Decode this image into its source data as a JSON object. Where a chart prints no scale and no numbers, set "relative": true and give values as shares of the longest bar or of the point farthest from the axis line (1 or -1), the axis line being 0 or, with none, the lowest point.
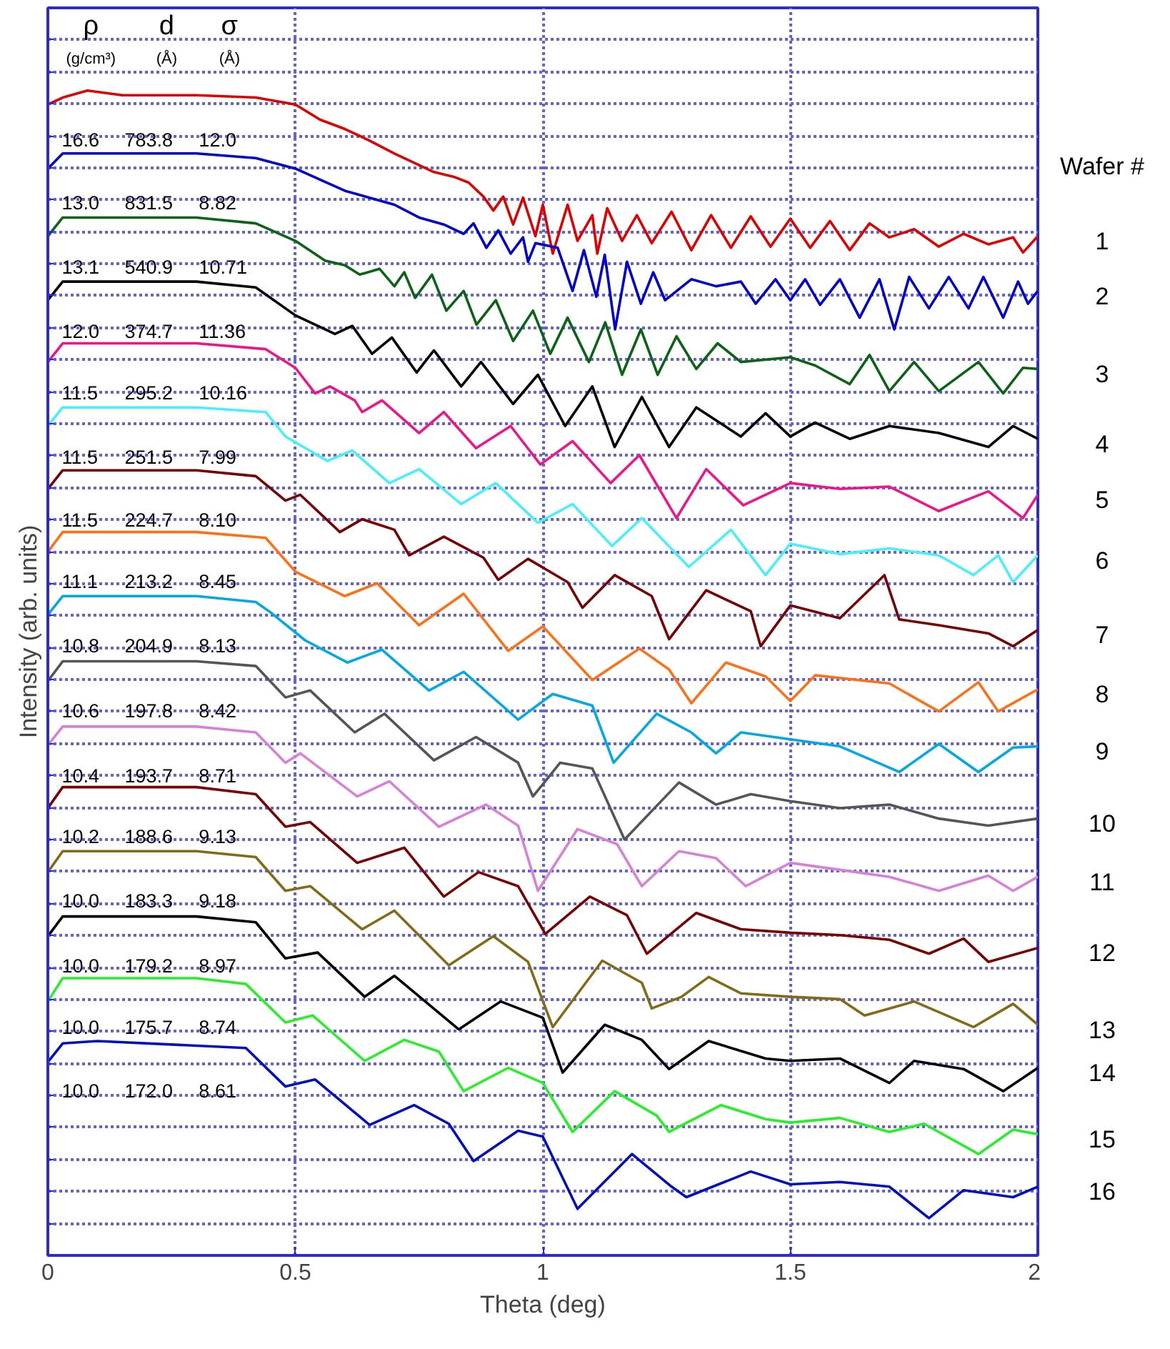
{
  "chart_data": {
    "type": "line",
    "relative": true,
    "xlabel": "Theta (deg)",
    "ylabel": "Intensity (arb. units)",
    "legend_title": "Wafer #",
    "grid": true,
    "tick_labels": "x",
    "xlim": [
      0,
      2
    ],
    "xticks": [
      0,
      0.5,
      1,
      1.5,
      2
    ],
    "annotations": [
      "ρ",
      "d",
      "σ",
      "(g/cm³)",
      "(Å)",
      "(Å)",
      "16.6",
      "783.8",
      "12.0",
      "13.0",
      "831.5",
      "8.82",
      "13.1",
      "540.9",
      "10.71",
      "12.0",
      "374.7",
      "11.36",
      "11.5",
      "295.2",
      "10.16",
      "11.5",
      "251.5",
      "7.99",
      "11.5",
      "224.7",
      "8.10",
      "11.1",
      "213.2",
      "8.45",
      "10.8",
      "204.9",
      "8.13",
      "10.6",
      "197.8",
      "8.42",
      "10.4",
      "193.7",
      "8.71",
      "10.2",
      "188.6",
      "9.13",
      "10.0",
      "183.3",
      "9.18",
      "10.0",
      "179.2",
      "8.97",
      "10.0",
      "175.7",
      "8.74",
      "10.0",
      "172.0",
      "8.61"
    ],
    "series": [
      {
        "name": "1",
        "color": "#e00000",
        "x": [
          0,
          0.03,
          0.08,
          0.15,
          0.3,
          0.42,
          0.5,
          0.55,
          0.6,
          0.65,
          0.7,
          0.75,
          0.78,
          0.82,
          0.85,
          0.88,
          0.9,
          0.92,
          0.94,
          0.96,
          0.985,
          1.0,
          1.02,
          1.05,
          1.07,
          1.1,
          1.11,
          1.13,
          1.16,
          1.19,
          1.22,
          1.26,
          1.3,
          1.34,
          1.38,
          1.42,
          1.46,
          1.5,
          1.54,
          1.58,
          1.62,
          1.66,
          1.7,
          1.75,
          1.8,
          1.85,
          1.9,
          1.95,
          1.97,
          2.0
        ],
        "values": [
          0.988,
          0.994,
          1.0,
          0.996,
          0.996,
          0.994,
          0.988,
          0.975,
          0.967,
          0.957,
          0.946,
          0.936,
          0.93,
          0.926,
          0.921,
          0.909,
          0.897,
          0.909,
          0.885,
          0.908,
          0.875,
          0.902,
          0.86,
          0.902,
          0.871,
          0.893,
          0.86,
          0.899,
          0.871,
          0.893,
          0.869,
          0.896,
          0.863,
          0.893,
          0.865,
          0.892,
          0.866,
          0.89,
          0.865,
          0.888,
          0.863,
          0.886,
          0.874,
          0.881,
          0.866,
          0.877,
          0.868,
          0.874,
          0.861,
          0.875
        ]
      },
      {
        "name": "2",
        "color": "#0000d0",
        "x": [
          0,
          0.03,
          0.1,
          0.3,
          0.42,
          0.5,
          0.6,
          0.7,
          0.75,
          0.8,
          0.84,
          0.86,
          0.886,
          0.91,
          0.935,
          0.96,
          0.97,
          0.985,
          1.03,
          1.06,
          1.083,
          1.108,
          1.125,
          1.146,
          1.17,
          1.198,
          1.223,
          1.247,
          1.3,
          1.35,
          1.4,
          1.43,
          1.47,
          1.5,
          1.53,
          1.56,
          1.6,
          1.64,
          1.68,
          1.71,
          1.74,
          1.78,
          1.82,
          1.86,
          1.89,
          1.93,
          1.96,
          1.98,
          2.0
        ],
        "values": [
          0.933,
          0.946,
          0.946,
          0.946,
          0.942,
          0.933,
          0.914,
          0.902,
          0.891,
          0.885,
          0.877,
          0.886,
          0.865,
          0.88,
          0.86,
          0.874,
          0.853,
          0.869,
          0.865,
          0.828,
          0.863,
          0.823,
          0.859,
          0.795,
          0.853,
          0.817,
          0.844,
          0.82,
          0.838,
          0.832,
          0.836,
          0.817,
          0.838,
          0.82,
          0.838,
          0.816,
          0.838,
          0.805,
          0.838,
          0.795,
          0.84,
          0.813,
          0.84,
          0.813,
          0.84,
          0.805,
          0.836,
          0.817,
          0.828
        ]
      },
      {
        "name": "3",
        "color": "#0a6414",
        "x": [
          0,
          0.03,
          0.1,
          0.3,
          0.42,
          0.5,
          0.56,
          0.6,
          0.63,
          0.67,
          0.7,
          0.72,
          0.742,
          0.776,
          0.805,
          0.84,
          0.866,
          0.905,
          0.94,
          0.98,
          1.015,
          1.05,
          1.093,
          1.126,
          1.16,
          1.198,
          1.232,
          1.27,
          1.31,
          1.353,
          1.4,
          1.5,
          1.55,
          1.62,
          1.66,
          1.7,
          1.75,
          1.8,
          1.88,
          1.93,
          1.97,
          2.0
        ],
        "values": [
          0.875,
          0.891,
          0.891,
          0.891,
          0.886,
          0.871,
          0.854,
          0.85,
          0.842,
          0.847,
          0.832,
          0.844,
          0.822,
          0.842,
          0.811,
          0.828,
          0.799,
          0.82,
          0.785,
          0.811,
          0.774,
          0.805,
          0.767,
          0.801,
          0.756,
          0.795,
          0.756,
          0.789,
          0.761,
          0.783,
          0.767,
          0.771,
          0.764,
          0.748,
          0.773,
          0.742,
          0.767,
          0.742,
          0.767,
          0.74,
          0.762,
          0.761
        ]
      },
      {
        "name": "4",
        "color": "#000000",
        "x": [
          0,
          0.03,
          0.1,
          0.3,
          0.42,
          0.5,
          0.58,
          0.615,
          0.655,
          0.695,
          0.745,
          0.78,
          0.835,
          0.875,
          0.94,
          0.99,
          1.045,
          1.1,
          1.145,
          1.2,
          1.255,
          1.31,
          1.4,
          1.45,
          1.5,
          1.55,
          1.62,
          1.7,
          1.8,
          1.9,
          1.95,
          2.0
        ],
        "values": [
          0.82,
          0.836,
          0.836,
          0.836,
          0.831,
          0.807,
          0.791,
          0.798,
          0.774,
          0.788,
          0.758,
          0.777,
          0.746,
          0.767,
          0.731,
          0.756,
          0.712,
          0.746,
          0.694,
          0.737,
          0.694,
          0.728,
          0.703,
          0.723,
          0.703,
          0.715,
          0.701,
          0.712,
          0.706,
          0.694,
          0.712,
          0.701
        ]
      },
      {
        "name": "5",
        "color": "#f0148c",
        "x": [
          0,
          0.03,
          0.1,
          0.3,
          0.44,
          0.5,
          0.54,
          0.57,
          0.62,
          0.635,
          0.675,
          0.75,
          0.8,
          0.865,
          0.935,
          0.995,
          1.06,
          1.137,
          1.195,
          1.27,
          1.33,
          1.405,
          1.5,
          1.6,
          1.7,
          1.8,
          1.9,
          1.97,
          2.0
        ],
        "values": [
          0.767,
          0.783,
          0.783,
          0.783,
          0.778,
          0.762,
          0.74,
          0.746,
          0.734,
          0.724,
          0.734,
          0.706,
          0.724,
          0.693,
          0.712,
          0.679,
          0.699,
          0.663,
          0.687,
          0.633,
          0.675,
          0.644,
          0.663,
          0.658,
          0.66,
          0.639,
          0.656,
          0.633,
          0.653
        ]
      },
      {
        "name": "6",
        "color": "#48f0ff",
        "x": [
          0,
          0.03,
          0.1,
          0.3,
          0.44,
          0.48,
          0.565,
          0.615,
          0.69,
          0.75,
          0.835,
          0.905,
          0.99,
          1.06,
          1.14,
          1.2,
          1.295,
          1.38,
          1.45,
          1.5,
          1.6,
          1.7,
          1.8,
          1.87,
          1.92,
          1.95,
          2.0
        ],
        "values": [
          0.712,
          0.728,
          0.728,
          0.728,
          0.724,
          0.703,
          0.682,
          0.691,
          0.663,
          0.675,
          0.645,
          0.663,
          0.629,
          0.645,
          0.609,
          0.633,
          0.591,
          0.623,
          0.584,
          0.611,
          0.602,
          0.607,
          0.601,
          0.584,
          0.601,
          0.578,
          0.601
        ]
      },
      {
        "name": "7",
        "color": "#780000",
        "x": [
          0,
          0.03,
          0.1,
          0.3,
          0.42,
          0.48,
          0.51,
          0.59,
          0.635,
          0.7,
          0.73,
          0.8,
          0.88,
          0.91,
          0.97,
          1.05,
          1.08,
          1.145,
          1.22,
          1.255,
          1.33,
          1.42,
          1.44,
          1.5,
          1.6,
          1.69,
          1.72,
          1.8,
          1.9,
          1.95,
          2.0
        ],
        "values": [
          0.658,
          0.674,
          0.674,
          0.674,
          0.669,
          0.648,
          0.653,
          0.621,
          0.632,
          0.623,
          0.601,
          0.617,
          0.599,
          0.58,
          0.598,
          0.578,
          0.556,
          0.584,
          0.566,
          0.529,
          0.571,
          0.553,
          0.523,
          0.558,
          0.547,
          0.584,
          0.546,
          0.541,
          0.534,
          0.523,
          0.537
        ]
      },
      {
        "name": "8",
        "color": "#ff7014",
        "x": [
          0,
          0.03,
          0.1,
          0.3,
          0.44,
          0.5,
          0.6,
          0.665,
          0.75,
          0.84,
          0.93,
          1.0,
          1.1,
          1.195,
          1.255,
          1.3,
          1.37,
          1.45,
          1.5,
          1.55,
          1.7,
          1.8,
          1.88,
          1.92,
          2.0
        ],
        "values": [
          0.604,
          0.621,
          0.621,
          0.621,
          0.616,
          0.587,
          0.566,
          0.577,
          0.541,
          0.568,
          0.519,
          0.54,
          0.494,
          0.521,
          0.503,
          0.474,
          0.509,
          0.497,
          0.476,
          0.498,
          0.491,
          0.467,
          0.492,
          0.467,
          0.486
        ]
      },
      {
        "name": "9",
        "color": "#00a8e8",
        "x": [
          0,
          0.03,
          0.1,
          0.3,
          0.42,
          0.45,
          0.52,
          0.605,
          0.675,
          0.77,
          0.84,
          0.95,
          1.02,
          1.1,
          1.143,
          1.23,
          1.3,
          1.35,
          1.4,
          1.5,
          1.6,
          1.72,
          1.8,
          1.88,
          1.95,
          2.0
        ],
        "values": [
          0.55,
          0.566,
          0.566,
          0.566,
          0.561,
          0.552,
          0.528,
          0.509,
          0.52,
          0.485,
          0.501,
          0.46,
          0.482,
          0.472,
          0.423,
          0.465,
          0.449,
          0.431,
          0.449,
          0.443,
          0.437,
          0.415,
          0.439,
          0.415,
          0.436,
          0.437
        ]
      },
      {
        "name": "10",
        "color": "#555555",
        "x": [
          0,
          0.03,
          0.1,
          0.3,
          0.42,
          0.48,
          0.53,
          0.62,
          0.68,
          0.78,
          0.865,
          0.95,
          0.98,
          1.035,
          1.1,
          1.165,
          1.275,
          1.35,
          1.42,
          1.5,
          1.6,
          1.7,
          1.8,
          1.9,
          2.0
        ],
        "values": [
          0.493,
          0.51,
          0.51,
          0.51,
          0.506,
          0.479,
          0.485,
          0.449,
          0.465,
          0.425,
          0.445,
          0.423,
          0.394,
          0.423,
          0.418,
          0.357,
          0.406,
          0.387,
          0.396,
          0.39,
          0.384,
          0.387,
          0.375,
          0.369,
          0.375
        ]
      },
      {
        "name": "11",
        "color": "#d880d8",
        "x": [
          0,
          0.03,
          0.1,
          0.3,
          0.42,
          0.48,
          0.51,
          0.625,
          0.69,
          0.79,
          0.885,
          0.95,
          0.99,
          1.07,
          1.15,
          1.2,
          1.275,
          1.35,
          1.41,
          1.5,
          1.6,
          1.7,
          1.8,
          1.9,
          1.95,
          2.0
        ],
        "values": [
          0.438,
          0.454,
          0.454,
          0.454,
          0.449,
          0.423,
          0.431,
          0.394,
          0.407,
          0.368,
          0.387,
          0.369,
          0.313,
          0.366,
          0.353,
          0.317,
          0.347,
          0.341,
          0.317,
          0.337,
          0.331,
          0.325,
          0.313,
          0.326,
          0.313,
          0.325
        ]
      },
      {
        "name": "12",
        "color": "#7a0000",
        "x": [
          0,
          0.03,
          0.1,
          0.3,
          0.42,
          0.48,
          0.53,
          0.625,
          0.72,
          0.8,
          0.87,
          0.95,
          1.005,
          1.095,
          1.17,
          1.21,
          1.31,
          1.4,
          1.5,
          1.6,
          1.7,
          1.78,
          1.85,
          1.9,
          2.0
        ],
        "values": [
          0.384,
          0.402,
          0.402,
          0.402,
          0.396,
          0.368,
          0.372,
          0.337,
          0.35,
          0.308,
          0.329,
          0.317,
          0.276,
          0.308,
          0.292,
          0.259,
          0.294,
          0.28,
          0.277,
          0.275,
          0.271,
          0.259,
          0.272,
          0.252,
          0.264
        ]
      },
      {
        "name": "13",
        "color": "#846a14",
        "x": [
          0,
          0.03,
          0.1,
          0.3,
          0.42,
          0.48,
          0.53,
          0.635,
          0.7,
          0.81,
          0.9,
          0.97,
          1.02,
          1.12,
          1.2,
          1.22,
          1.28,
          1.335,
          1.4,
          1.5,
          1.6,
          1.65,
          1.75,
          1.87,
          1.95,
          2.0
        ],
        "values": [
          0.329,
          0.347,
          0.347,
          0.347,
          0.342,
          0.313,
          0.317,
          0.28,
          0.296,
          0.249,
          0.274,
          0.252,
          0.196,
          0.253,
          0.234,
          0.212,
          0.222,
          0.239,
          0.225,
          0.222,
          0.22,
          0.206,
          0.218,
          0.196,
          0.216,
          0.198
        ]
      },
      {
        "name": "14",
        "color": "#000000",
        "x": [
          0,
          0.03,
          0.1,
          0.3,
          0.42,
          0.48,
          0.545,
          0.64,
          0.7,
          0.83,
          0.915,
          1.0,
          1.04,
          1.125,
          1.2,
          1.255,
          1.335,
          1.45,
          1.5,
          1.6,
          1.7,
          1.75,
          1.85,
          1.93,
          2.0
        ],
        "values": [
          0.274,
          0.291,
          0.291,
          0.291,
          0.286,
          0.255,
          0.26,
          0.222,
          0.24,
          0.194,
          0.218,
          0.204,
          0.157,
          0.198,
          0.185,
          0.16,
          0.184,
          0.169,
          0.167,
          0.169,
          0.148,
          0.167,
          0.16,
          0.141,
          0.161
        ]
      },
      {
        "name": "15",
        "color": "#28f028",
        "x": [
          0,
          0.03,
          0.1,
          0.3,
          0.4,
          0.48,
          0.535,
          0.64,
          0.72,
          0.79,
          0.84,
          0.93,
          1.0,
          1.06,
          1.145,
          1.23,
          1.255,
          1.36,
          1.45,
          1.5,
          1.6,
          1.7,
          1.77,
          1.88,
          1.95,
          2.0
        ],
        "values": [
          0.218,
          0.238,
          0.238,
          0.238,
          0.233,
          0.2,
          0.206,
          0.167,
          0.185,
          0.175,
          0.141,
          0.161,
          0.148,
          0.106,
          0.141,
          0.12,
          0.106,
          0.129,
          0.117,
          0.114,
          0.118,
          0.106,
          0.113,
          0.087,
          0.108,
          0.104
        ]
      },
      {
        "name": "16",
        "color": "#0010c0",
        "x": [
          0,
          0.03,
          0.1,
          0.4,
          0.48,
          0.54,
          0.65,
          0.74,
          0.81,
          0.86,
          0.95,
          1.0,
          1.07,
          1.18,
          1.26,
          1.29,
          1.42,
          1.5,
          1.6,
          1.7,
          1.78,
          1.85,
          1.95,
          2.0
        ],
        "values": [
          0.166,
          0.182,
          0.184,
          0.178,
          0.145,
          0.151,
          0.112,
          0.129,
          0.113,
          0.081,
          0.107,
          0.102,
          0.04,
          0.087,
          0.059,
          0.05,
          0.072,
          0.061,
          0.063,
          0.059,
          0.032,
          0.056,
          0.05,
          0.059
        ]
      }
    ]
  }
}
